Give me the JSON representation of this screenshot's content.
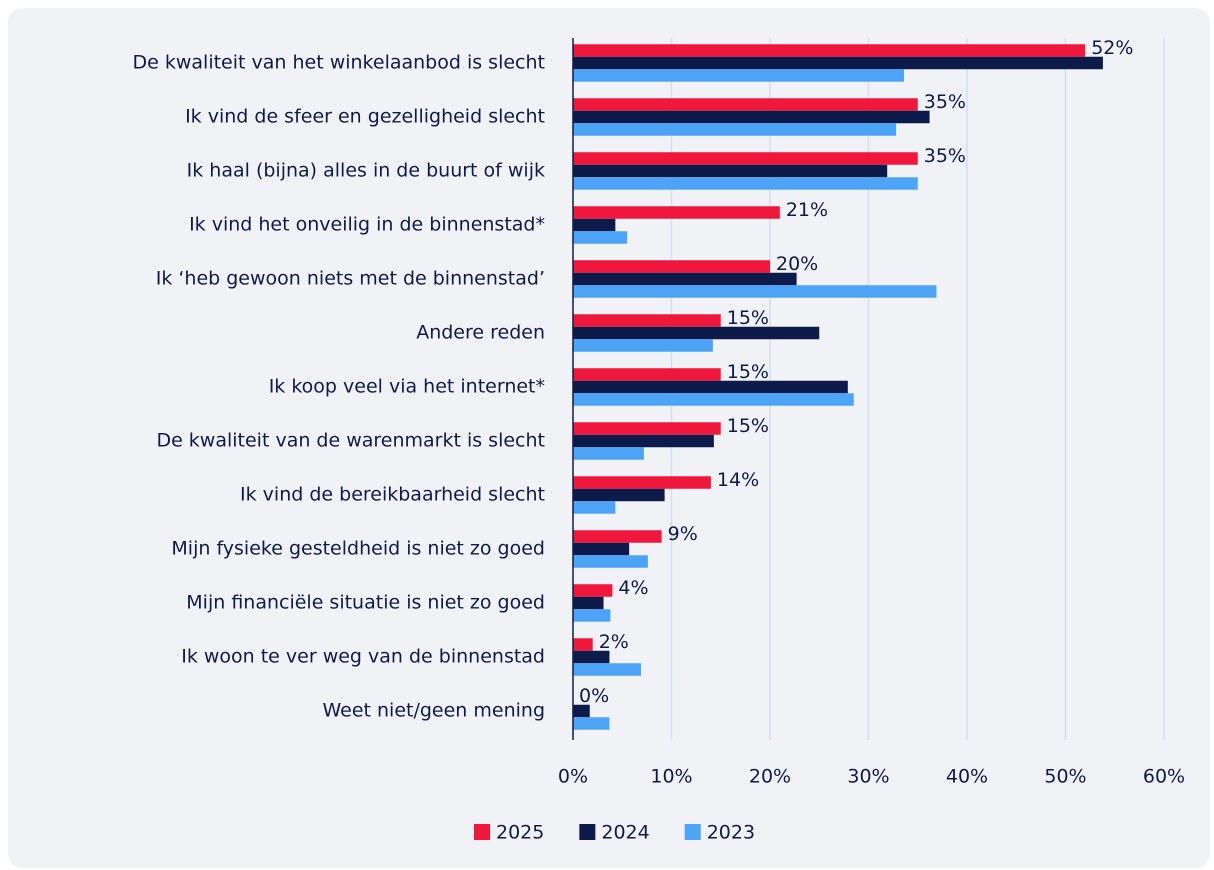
{
  "chart_data": {
    "type": "hbar",
    "categories": [
      "De kwaliteit van het winkelaanbod is slecht",
      "Ik vind de sfeer en gezelligheid slecht",
      "Ik haal (bijna) alles  in de buurt of wijk",
      "Ik vind het onveilig in de binnenstad*",
      "Ik ‘heb gewoon niets met de binnenstad’",
      "Andere reden",
      "Ik koop veel via het internet*",
      "De kwaliteit van de warenmarkt is slecht",
      "Ik vind de bereikbaarheid slecht",
      "Mijn fysieke gesteldheid is niet zo goed",
      "Mijn financiële situatie is niet zo goed",
      "Ik woon te ver weg van de binnenstad",
      "Weet niet/geen mening"
    ],
    "series": [
      {
        "name": "2025",
        "color": "#f0173d",
        "values": [
          52,
          35,
          35,
          21,
          20,
          15,
          15,
          15,
          14,
          9,
          4,
          2,
          0
        ],
        "value_labels": [
          "52%",
          "35%",
          "35%",
          "21%",
          "20%",
          "15%",
          "15%",
          "15%",
          "14%",
          "9%",
          "4%",
          "2%",
          "0%"
        ]
      },
      {
        "name": "2024",
        "color": "#0d1b4b",
        "values": [
          53.8,
          36.2,
          31.9,
          4.3,
          22.7,
          25.0,
          27.9,
          14.3,
          9.3,
          5.7,
          3.1,
          3.7,
          1.7
        ]
      },
      {
        "name": "2023",
        "color": "#4da3f5",
        "values": [
          33.6,
          32.8,
          35.0,
          5.5,
          36.9,
          14.2,
          28.5,
          7.2,
          4.3,
          7.6,
          3.8,
          6.9,
          3.7
        ]
      }
    ],
    "xlim": [
      0,
      60
    ],
    "xticks": [
      {
        "value": 0,
        "label": "0%"
      },
      {
        "value": 10,
        "label": "10%"
      },
      {
        "value": 20,
        "label": "20%"
      },
      {
        "value": 30,
        "label": "30%"
      },
      {
        "value": 40,
        "label": "40%"
      },
      {
        "value": 50,
        "label": "50%"
      },
      {
        "value": 60,
        "label": "60%"
      }
    ],
    "grid": true,
    "legend": "bottom"
  }
}
